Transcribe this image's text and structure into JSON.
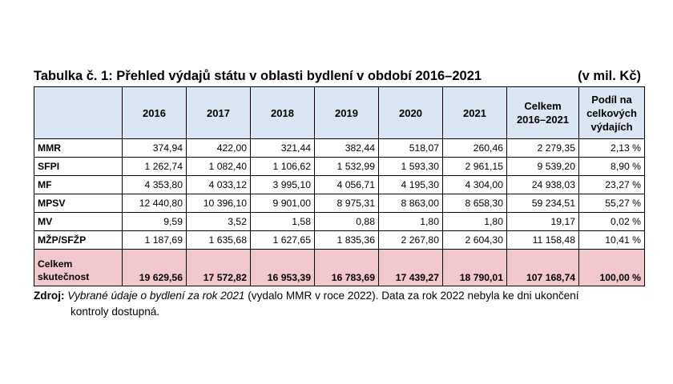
{
  "caption": {
    "title": "Tabulka č. 1: Přehled výdajů státu v oblasti bydlení v období 2016–2021",
    "unit": "(v mil. Kč)"
  },
  "table": {
    "headers": [
      "",
      "2016",
      "2017",
      "2018",
      "2019",
      "2020",
      "2021",
      "Celkem\n2016–2021",
      "Podíl na\ncelkových\nvýdajích"
    ],
    "rows": [
      [
        "MMR",
        "374,94",
        "422,00",
        "321,44",
        "382,44",
        "518,07",
        "260,46",
        "2 279,35",
        "2,13 %"
      ],
      [
        "SFPI",
        "1 262,74",
        "1 082,40",
        "1 106,62",
        "1 532,99",
        "1 593,30",
        "2 961,15",
        "9 539,20",
        "8,90 %"
      ],
      [
        "MF",
        "4 353,80",
        "4 033,12",
        "3 995,10",
        "4 056,71",
        "4 195,30",
        "4 304,00",
        "24 938,03",
        "23,27 %"
      ],
      [
        "MPSV",
        "12 440,80",
        "10 396,10",
        "9 901,00",
        "8 975,31",
        "8 863,00",
        "8 658,30",
        "59 234,51",
        "55,27 %"
      ],
      [
        "MV",
        "9,59",
        "3,52",
        "1,58",
        "0,88",
        "1,80",
        "1,80",
        "19,17",
        "0,02 %"
      ],
      [
        "MŽP/SFŽP",
        "1 187,69",
        "1 635,68",
        "1 627,65",
        "1 835,36",
        "2 267,80",
        "2 604,30",
        "11 158,48",
        "10,41 %"
      ]
    ],
    "total_row": [
      "Celkem\nskutečnost",
      "19 629,56",
      "17 572,82",
      "16 953,39",
      "16 783,69",
      "17 439,27",
      "18 790,01",
      "107 168,74",
      "100,00 %"
    ]
  },
  "source": {
    "label": "Zdroj:",
    "italic": "Vybrané údaje o bydlení za rok 2021",
    "rest1": " (vydalo MMR v roce 2022). Data za rok 2022 nebyla ke dni ukončení",
    "rest2": "kontroly dostupná."
  },
  "colors": {
    "header_bg": "#dbe6f4",
    "total_bg": "#f2c8cc"
  }
}
